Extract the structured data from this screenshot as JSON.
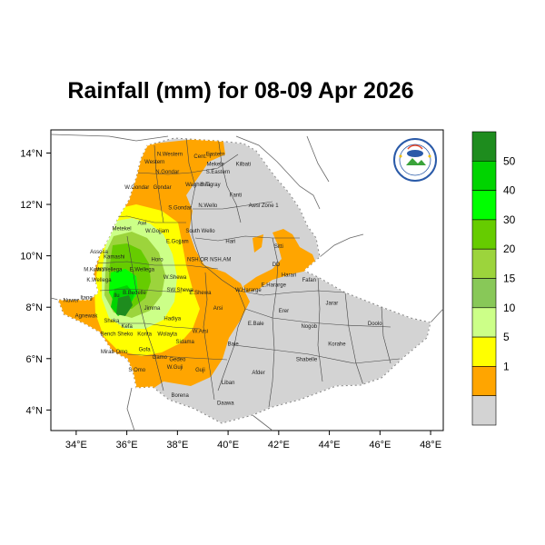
{
  "title": "Rainfall (mm) for 08-09 Apr 2026",
  "x_ticks": [
    "34°E",
    "36°E",
    "38°E",
    "40°E",
    "42°E",
    "44°E",
    "46°E",
    "48°E"
  ],
  "y_ticks": [
    "14°N",
    "12°N",
    "10°N",
    "8°N",
    "6°N",
    "4°N"
  ],
  "legend": {
    "labels": [
      "50",
      "40",
      "30",
      "20",
      "15",
      "10",
      "5",
      "1"
    ],
    "colors": [
      "#1e8c1e",
      "#00d400",
      "#00ff00",
      "#66cc00",
      "#9cd43c",
      "#88c858",
      "#ccff88",
      "#ffff00",
      "#ffa500",
      "#d3d3d3"
    ]
  },
  "regions": [
    {
      "name": "N.Western",
      "lon": 37.7,
      "lat": 13.9
    },
    {
      "name": "Cent. T",
      "lon": 39.0,
      "lat": 13.8
    },
    {
      "name": "Eastern",
      "lon": 39.5,
      "lat": 13.9
    },
    {
      "name": "Western",
      "lon": 37.1,
      "lat": 13.6
    },
    {
      "name": "Mekele",
      "lon": 39.5,
      "lat": 13.5
    },
    {
      "name": "S.Eastern",
      "lon": 39.6,
      "lat": 13.2
    },
    {
      "name": "Kilbati",
      "lon": 40.6,
      "lat": 13.5
    },
    {
      "name": "N.Gondar",
      "lon": 37.6,
      "lat": 13.2
    },
    {
      "name": "Waghimra",
      "lon": 38.8,
      "lat": 12.7
    },
    {
      "name": "S.Tigray",
      "lon": 39.3,
      "lat": 12.7
    },
    {
      "name": "W.Gondar",
      "lon": 36.4,
      "lat": 12.6
    },
    {
      "name": "Gondar",
      "lon": 37.4,
      "lat": 12.6
    },
    {
      "name": "Fanti",
      "lon": 40.3,
      "lat": 12.3
    },
    {
      "name": "Awsi Zone 1",
      "lon": 41.4,
      "lat": 11.9
    },
    {
      "name": "S.Gondar",
      "lon": 38.1,
      "lat": 11.8
    },
    {
      "name": "N.Wello",
      "lon": 39.2,
      "lat": 11.9
    },
    {
      "name": "Metekel",
      "lon": 35.8,
      "lat": 11.0
    },
    {
      "name": "Awi",
      "lon": 36.6,
      "lat": 11.2
    },
    {
      "name": "W.Gojjam",
      "lon": 37.2,
      "lat": 10.9
    },
    {
      "name": "South Wello",
      "lon": 38.9,
      "lat": 10.9
    },
    {
      "name": "E.Gojjam",
      "lon": 38.0,
      "lat": 10.5
    },
    {
      "name": "Hari",
      "lon": 40.1,
      "lat": 10.5
    },
    {
      "name": "Sitti",
      "lon": 42.0,
      "lat": 10.3
    },
    {
      "name": "Assosa",
      "lon": 34.9,
      "lat": 10.1
    },
    {
      "name": "Kamashi",
      "lon": 35.5,
      "lat": 9.9
    },
    {
      "name": "Horo",
      "lon": 37.2,
      "lat": 9.8
    },
    {
      "name": "NSH.OR",
      "lon": 38.8,
      "lat": 9.8
    },
    {
      "name": "NSH.AM",
      "lon": 39.7,
      "lat": 9.8
    },
    {
      "name": "M.Komo",
      "lon": 34.7,
      "lat": 9.4
    },
    {
      "name": "W.Wellega",
      "lon": 35.3,
      "lat": 9.4
    },
    {
      "name": "E.Wellega",
      "lon": 36.6,
      "lat": 9.4
    },
    {
      "name": "W.Shewa",
      "lon": 37.9,
      "lat": 9.1
    },
    {
      "name": "DD",
      "lon": 41.9,
      "lat": 9.6
    },
    {
      "name": "Harari",
      "lon": 42.4,
      "lat": 9.2
    },
    {
      "name": "Fafan",
      "lon": 43.2,
      "lat": 9.0
    },
    {
      "name": "K.Wellega",
      "lon": 34.9,
      "lat": 9.0
    },
    {
      "name": "E.Hararge",
      "lon": 41.8,
      "lat": 8.8
    },
    {
      "name": "W.Hararge",
      "lon": 40.8,
      "lat": 8.6
    },
    {
      "name": "Ilu",
      "lon": 35.6,
      "lat": 8.4
    },
    {
      "name": "B.Bedelle",
      "lon": 36.3,
      "lat": 8.5
    },
    {
      "name": "SW.Shewa",
      "lon": 38.1,
      "lat": 8.6
    },
    {
      "name": "E.Shewa",
      "lon": 38.9,
      "lat": 8.5
    },
    {
      "name": "Nuwer",
      "lon": 33.8,
      "lat": 8.2
    },
    {
      "name": "Itang",
      "lon": 34.4,
      "lat": 8.3
    },
    {
      "name": "Jimma",
      "lon": 37.0,
      "lat": 7.9
    },
    {
      "name": "Arsi",
      "lon": 39.6,
      "lat": 7.9
    },
    {
      "name": "Erer",
      "lon": 42.2,
      "lat": 7.8
    },
    {
      "name": "Jarar",
      "lon": 44.1,
      "lat": 8.1
    },
    {
      "name": "Agnewak",
      "lon": 34.4,
      "lat": 7.6
    },
    {
      "name": "Sheka",
      "lon": 35.4,
      "lat": 7.4
    },
    {
      "name": "Kefa",
      "lon": 36.0,
      "lat": 7.2
    },
    {
      "name": "Hadiya",
      "lon": 37.8,
      "lat": 7.5
    },
    {
      "name": "E.Bale",
      "lon": 41.1,
      "lat": 7.3
    },
    {
      "name": "Nogob",
      "lon": 43.2,
      "lat": 7.2
    },
    {
      "name": "Doolo",
      "lon": 45.8,
      "lat": 7.3
    },
    {
      "name": "Bench Sheko",
      "lon": 35.6,
      "lat": 6.9
    },
    {
      "name": "Konta",
      "lon": 36.7,
      "lat": 6.9
    },
    {
      "name": "Wolayta",
      "lon": 37.6,
      "lat": 6.9
    },
    {
      "name": "W.Arsi",
      "lon": 38.9,
      "lat": 7.0
    },
    {
      "name": "Bale",
      "lon": 40.2,
      "lat": 6.5
    },
    {
      "name": "Korahe",
      "lon": 44.3,
      "lat": 6.5
    },
    {
      "name": "Mirab Omo",
      "lon": 35.5,
      "lat": 6.2
    },
    {
      "name": "Gofa",
      "lon": 36.7,
      "lat": 6.3
    },
    {
      "name": "Gamo",
      "lon": 37.3,
      "lat": 6.0
    },
    {
      "name": "Sidama",
      "lon": 38.3,
      "lat": 6.6
    },
    {
      "name": "Shabelle",
      "lon": 43.1,
      "lat": 5.9
    },
    {
      "name": "S.Omo",
      "lon": 36.4,
      "lat": 5.5
    },
    {
      "name": "Gedeo",
      "lon": 38.0,
      "lat": 5.9
    },
    {
      "name": "W.Guji",
      "lon": 37.9,
      "lat": 5.6
    },
    {
      "name": "Guji",
      "lon": 38.9,
      "lat": 5.5
    },
    {
      "name": "Afder",
      "lon": 41.2,
      "lat": 5.4
    },
    {
      "name": "Liban",
      "lon": 40.0,
      "lat": 5.0
    },
    {
      "name": "Borena",
      "lon": 38.1,
      "lat": 4.5
    },
    {
      "name": "Daawa",
      "lon": 39.9,
      "lat": 4.2
    }
  ]
}
